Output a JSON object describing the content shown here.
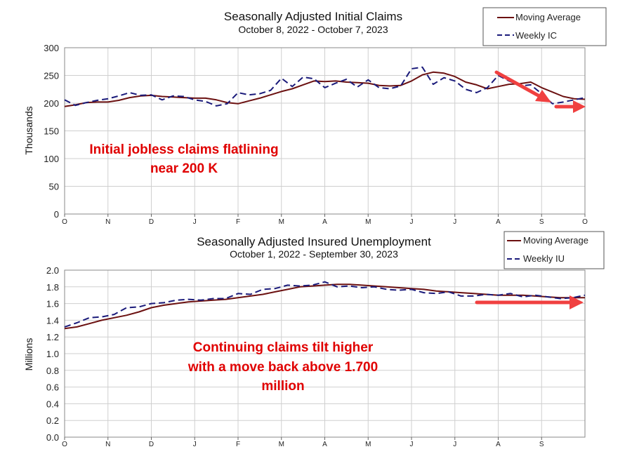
{
  "chart_data": [
    {
      "type": "line",
      "title": "Seasonally Adjusted Initial Claims",
      "subtitle": "October 8, 2022 - October 7, 2023",
      "ylabel": "Thousands",
      "ylim": [
        0,
        300
      ],
      "yticks": [
        0,
        50,
        100,
        150,
        200,
        250,
        300
      ],
      "xticks": [
        "O",
        "N",
        "D",
        "J",
        "F",
        "M",
        "A",
        "M",
        "J",
        "J",
        "A",
        "S",
        "O"
      ],
      "grid": true,
      "legend_position": "top-right",
      "series": [
        {
          "name": "Moving Average",
          "color": "#6b1010",
          "style": "solid",
          "values": [
            194,
            197,
            201,
            202,
            202,
            205,
            210,
            213,
            214,
            212,
            211,
            210,
            209,
            209,
            206,
            201,
            199,
            204,
            209,
            215,
            221,
            226,
            233,
            240,
            239,
            240,
            238,
            237,
            236,
            232,
            231,
            232,
            240,
            251,
            256,
            254,
            248,
            238,
            233,
            226,
            230,
            234,
            235,
            238,
            228,
            220,
            212,
            208,
            207
          ]
        },
        {
          "name": "Weekly IC",
          "color": "#1a1a7a",
          "style": "dashed",
          "values": [
            206,
            196,
            201,
            205,
            208,
            213,
            219,
            214,
            215,
            206,
            213,
            212,
            206,
            203,
            195,
            199,
            219,
            215,
            217,
            223,
            245,
            230,
            247,
            244,
            228,
            236,
            243,
            229,
            242,
            228,
            226,
            231,
            262,
            265,
            234,
            246,
            240,
            225,
            219,
            228,
            250,
            240,
            231,
            233,
            217,
            199,
            202,
            206,
            210
          ]
        }
      ],
      "annotations": [
        "Initial jobless claims flatlining",
        "near 200 K"
      ]
    },
    {
      "type": "line",
      "title": "Seasonally Adjusted Insured Unemployment",
      "subtitle": "October 1, 2022 - September 30, 2023",
      "ylabel": "Millions",
      "ylim": [
        0,
        2.0
      ],
      "yticks": [
        "0.0",
        "0.2",
        "0.4",
        "0.6",
        "0.8",
        "1.0",
        "1.2",
        "1.4",
        "1.6",
        "1.8",
        "2.0"
      ],
      "xticks": [
        "O",
        "N",
        "D",
        "J",
        "F",
        "M",
        "A",
        "M",
        "J",
        "J",
        "A",
        "S"
      ],
      "grid": true,
      "legend_position": "top-right",
      "series": [
        {
          "name": "Moving Average",
          "color": "#6b1010",
          "style": "solid",
          "values": [
            1.3,
            1.32,
            1.36,
            1.4,
            1.43,
            1.46,
            1.5,
            1.55,
            1.58,
            1.6,
            1.62,
            1.63,
            1.64,
            1.65,
            1.67,
            1.69,
            1.71,
            1.74,
            1.77,
            1.8,
            1.81,
            1.82,
            1.83,
            1.83,
            1.82,
            1.81,
            1.8,
            1.79,
            1.78,
            1.77,
            1.75,
            1.74,
            1.73,
            1.72,
            1.71,
            1.7,
            1.7,
            1.7,
            1.69,
            1.68,
            1.67,
            1.67,
            1.67
          ]
        },
        {
          "name": "Weekly IU",
          "color": "#1a1a7a",
          "style": "dashed",
          "values": [
            1.32,
            1.37,
            1.43,
            1.44,
            1.47,
            1.55,
            1.56,
            1.6,
            1.61,
            1.64,
            1.65,
            1.64,
            1.66,
            1.66,
            1.72,
            1.71,
            1.77,
            1.78,
            1.82,
            1.81,
            1.82,
            1.86,
            1.8,
            1.81,
            1.79,
            1.8,
            1.77,
            1.76,
            1.77,
            1.73,
            1.72,
            1.74,
            1.69,
            1.69,
            1.71,
            1.7,
            1.72,
            1.68,
            1.7,
            1.68,
            1.66,
            1.67,
            1.7
          ]
        }
      ],
      "annotations": [
        "Continuing claims tilt higher",
        "with a move back above 1.700",
        "million"
      ]
    }
  ]
}
